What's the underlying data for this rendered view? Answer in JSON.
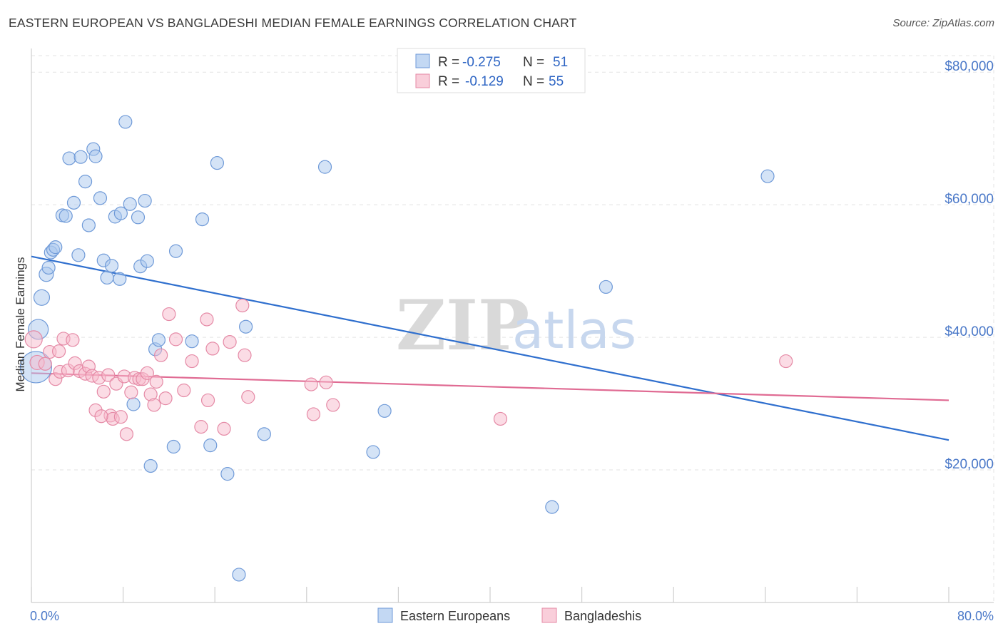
{
  "title": "EASTERN EUROPEAN VS BANGLADESHI MEDIAN FEMALE EARNINGS CORRELATION CHART",
  "source": "Source: ZipAtlas.com",
  "watermark": {
    "zip": "ZIP",
    "atlas": "atlas"
  },
  "chart_data": {
    "type": "scatter",
    "ylabel": "Median Female Earnings",
    "xlabel": "",
    "xlim": [
      0,
      80
    ],
    "ylim": [
      0,
      84000
    ],
    "x_tick_labels": {
      "min": "0.0%",
      "max": "80.0%"
    },
    "y_ticks": [
      {
        "value": 20000,
        "label": "$20,000"
      },
      {
        "value": 40000,
        "label": "$40,000"
      },
      {
        "value": 60000,
        "label": "$60,000"
      },
      {
        "value": 80000,
        "label": "$80,000"
      }
    ],
    "grid": true,
    "legend_stats": [
      {
        "r_label": "R = ",
        "r_value": "-0.275",
        "n_label": "N = ",
        "n_value": "51",
        "color": "#a9c7ee",
        "stroke": "#6f9ad8"
      },
      {
        "r_label": "R = ",
        "r_value": "-0.129",
        "n_label": "N = ",
        "n_value": "55",
        "color": "#f7b9cb",
        "stroke": "#e58aa6"
      }
    ],
    "series": [
      {
        "name": "Eastern Europeans",
        "color": "#a9c7ee",
        "stroke": "#6f9ad8",
        "trend_color": "#2f6fce",
        "trend": {
          "x0": 0,
          "y0": 52200,
          "x1": 80,
          "y1": 24500
        },
        "points": [
          [
            0.4,
            35500,
            22
          ],
          [
            0.6,
            41200,
            14
          ],
          [
            0.9,
            46000,
            11
          ],
          [
            1.3,
            49500,
            10
          ],
          [
            1.5,
            50500,
            9
          ],
          [
            1.7,
            52800,
            9
          ],
          [
            1.9,
            53200,
            9
          ],
          [
            2.1,
            53600,
            9
          ],
          [
            2.7,
            58400,
            9
          ],
          [
            3.0,
            58300,
            9
          ],
          [
            3.3,
            67000,
            9
          ],
          [
            3.7,
            60300,
            9
          ],
          [
            4.1,
            52400,
            9
          ],
          [
            4.3,
            67200,
            9
          ],
          [
            4.7,
            63500,
            9
          ],
          [
            5.0,
            56900,
            9
          ],
          [
            5.4,
            68400,
            9
          ],
          [
            5.6,
            67300,
            9
          ],
          [
            6.0,
            61000,
            9
          ],
          [
            6.3,
            51600,
            9
          ],
          [
            6.6,
            49000,
            9
          ],
          [
            7.0,
            50800,
            9
          ],
          [
            7.3,
            58200,
            9
          ],
          [
            7.7,
            48800,
            9
          ],
          [
            7.8,
            58700,
            9
          ],
          [
            8.2,
            72500,
            9
          ],
          [
            8.6,
            60100,
            9
          ],
          [
            8.9,
            29900,
            9
          ],
          [
            9.3,
            58100,
            9
          ],
          [
            9.5,
            50700,
            9
          ],
          [
            9.9,
            60600,
            9
          ],
          [
            10.1,
            51500,
            9
          ],
          [
            10.4,
            20600,
            9
          ],
          [
            10.8,
            38200,
            9
          ],
          [
            11.1,
            39600,
            9
          ],
          [
            12.4,
            23500,
            9
          ],
          [
            12.6,
            53000,
            9
          ],
          [
            14.0,
            39400,
            9
          ],
          [
            14.9,
            57800,
            9
          ],
          [
            15.6,
            23700,
            9
          ],
          [
            16.2,
            66300,
            9
          ],
          [
            17.1,
            19400,
            9
          ],
          [
            18.1,
            4200,
            9
          ],
          [
            18.7,
            41600,
            9
          ],
          [
            20.3,
            25400,
            9
          ],
          [
            25.6,
            65700,
            9
          ],
          [
            29.8,
            22700,
            9
          ],
          [
            30.8,
            28900,
            9
          ],
          [
            45.4,
            14400,
            9
          ],
          [
            50.1,
            47600,
            9
          ],
          [
            64.2,
            64300,
            9
          ]
        ]
      },
      {
        "name": "Bangladeshis",
        "color": "#f7b9cb",
        "stroke": "#e58aa6",
        "trend_color": "#e06b93",
        "trend": {
          "x0": 0,
          "y0": 34600,
          "x1": 80,
          "y1": 30500
        },
        "points": [
          [
            0.2,
            39700,
            12
          ],
          [
            0.5,
            36200,
            10
          ],
          [
            1.2,
            36000,
            9
          ],
          [
            1.6,
            37800,
            9
          ],
          [
            2.1,
            33700,
            9
          ],
          [
            2.5,
            34800,
            9
          ],
          [
            2.8,
            39800,
            9
          ],
          [
            3.2,
            35000,
            9
          ],
          [
            3.6,
            39600,
            9
          ],
          [
            3.8,
            36100,
            9
          ],
          [
            4.2,
            34900,
            9
          ],
          [
            4.7,
            34500,
            9
          ],
          [
            5.0,
            35600,
            9
          ],
          [
            5.3,
            34200,
            9
          ],
          [
            5.6,
            29000,
            9
          ],
          [
            5.9,
            33900,
            9
          ],
          [
            6.3,
            31800,
            9
          ],
          [
            6.7,
            34300,
            9
          ],
          [
            6.9,
            28200,
            9
          ],
          [
            7.1,
            27700,
            9
          ],
          [
            7.4,
            33000,
            9
          ],
          [
            7.8,
            28000,
            9
          ],
          [
            8.1,
            34100,
            9
          ],
          [
            8.3,
            25400,
            9
          ],
          [
            8.7,
            31700,
            9
          ],
          [
            9.0,
            33900,
            9
          ],
          [
            9.4,
            33700,
            9
          ],
          [
            9.7,
            33700,
            9
          ],
          [
            10.1,
            34600,
            9
          ],
          [
            10.4,
            31400,
            9
          ],
          [
            10.7,
            29800,
            9
          ],
          [
            10.9,
            33300,
            9
          ],
          [
            11.3,
            37300,
            9
          ],
          [
            11.7,
            30800,
            9
          ],
          [
            12.0,
            43500,
            9
          ],
          [
            12.6,
            39700,
            9
          ],
          [
            13.3,
            32000,
            9
          ],
          [
            14.0,
            36400,
            9
          ],
          [
            14.8,
            26500,
            9
          ],
          [
            15.3,
            42700,
            9
          ],
          [
            15.4,
            30500,
            9
          ],
          [
            15.8,
            38300,
            9
          ],
          [
            16.8,
            26200,
            9
          ],
          [
            17.3,
            39300,
            9
          ],
          [
            18.6,
            37300,
            9
          ],
          [
            18.4,
            44800,
            9
          ],
          [
            18.9,
            31000,
            9
          ],
          [
            24.4,
            32900,
            9
          ],
          [
            24.6,
            28400,
            9
          ],
          [
            25.7,
            33200,
            9
          ],
          [
            26.3,
            29800,
            9
          ],
          [
            40.9,
            27700,
            9
          ],
          [
            65.8,
            36400,
            9
          ],
          [
            6.1,
            28100,
            9
          ],
          [
            2.4,
            37900,
            9
          ]
        ]
      }
    ]
  }
}
